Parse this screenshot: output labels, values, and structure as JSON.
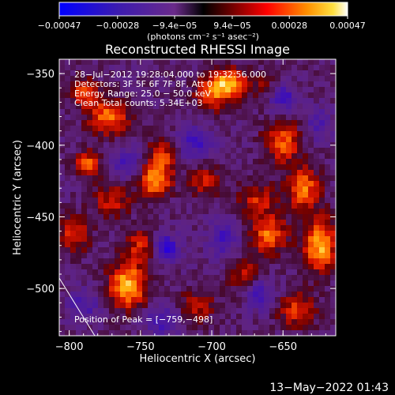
{
  "chart_data": {
    "type": "heatmap",
    "title": "Reconstructed RHESSI Image",
    "xlabel": "Heliocentric X (arcsec)",
    "ylabel": "Heliocentric Y (arcsec)",
    "xlim": [
      -807,
      -613
    ],
    "ylim": [
      -533,
      -340
    ],
    "x_ticks": [
      {
        "value": -800,
        "label": "−800"
      },
      {
        "value": -750,
        "label": "−750"
      },
      {
        "value": -700,
        "label": "−700"
      },
      {
        "value": -650,
        "label": "−650"
      }
    ],
    "y_ticks": [
      {
        "value": -350,
        "label": "−350"
      },
      {
        "value": -400,
        "label": "−400"
      },
      {
        "value": -450,
        "label": "−450"
      },
      {
        "value": -500,
        "label": "−500"
      }
    ],
    "colorbar": {
      "range": [
        -0.00047,
        0.00047
      ],
      "ticks": [
        {
          "value": -0.00047,
          "label": "−0.00047"
        },
        {
          "value": -0.00028,
          "label": "−0.00028"
        },
        {
          "value": -9.4e-05,
          "label": "−9.4e−05"
        },
        {
          "value": 9.4e-05,
          "label": "9.4e−05"
        },
        {
          "value": 0.00028,
          "label": "0.00028"
        },
        {
          "value": 0.00047,
          "label": "0.00047"
        }
      ],
      "units_label": "(photons cm⁻² s⁻¹ asec⁻²)"
    },
    "info_lines": [
      "28−Jul−2012 19:28:04.000 to 19:32:56.000",
      "Detectors: 3F 5F 6F 7F 8F, Att 0",
      "Energy Range: 25.0 − 50.0 keV",
      "Clean     Total counts: 5.34E+03"
    ],
    "peak_label": "Position of Peak = [−759,−498]",
    "peak_position": [
      -759,
      -498
    ],
    "blobs": [
      {
        "x": -759,
        "y": -498,
        "amp": 1.0,
        "sx": 9,
        "sy": 11
      },
      {
        "x": -688,
        "y": -357,
        "amp": 0.9,
        "sx": 9,
        "sy": 7
      },
      {
        "x": -700,
        "y": -365,
        "amp": 0.6,
        "sx": 8,
        "sy": 8
      },
      {
        "x": -772,
        "y": -380,
        "amp": 0.75,
        "sx": 10,
        "sy": 9
      },
      {
        "x": -790,
        "y": -363,
        "amp": 0.6,
        "sx": 7,
        "sy": 7
      },
      {
        "x": -624,
        "y": -470,
        "amp": 0.95,
        "sx": 8,
        "sy": 13
      },
      {
        "x": -636,
        "y": -430,
        "amp": 0.8,
        "sx": 8,
        "sy": 10
      },
      {
        "x": -650,
        "y": -398,
        "amp": 0.7,
        "sx": 9,
        "sy": 10
      },
      {
        "x": -740,
        "y": -425,
        "amp": 0.85,
        "sx": 8,
        "sy": 8
      },
      {
        "x": -735,
        "y": -407,
        "amp": 0.6,
        "sx": 7,
        "sy": 9
      },
      {
        "x": -787,
        "y": -413,
        "amp": 0.75,
        "sx": 6,
        "sy": 6
      },
      {
        "x": -660,
        "y": -462,
        "amp": 0.75,
        "sx": 9,
        "sy": 9
      },
      {
        "x": -675,
        "y": -492,
        "amp": 0.55,
        "sx": 8,
        "sy": 10
      },
      {
        "x": -668,
        "y": -438,
        "amp": 0.5,
        "sx": 10,
        "sy": 8
      },
      {
        "x": -797,
        "y": -462,
        "amp": 0.55,
        "sx": 8,
        "sy": 9
      },
      {
        "x": -770,
        "y": -438,
        "amp": 0.5,
        "sx": 9,
        "sy": 8
      },
      {
        "x": -705,
        "y": -425,
        "amp": 0.45,
        "sx": 8,
        "sy": 8
      },
      {
        "x": -640,
        "y": -515,
        "amp": 0.6,
        "sx": 9,
        "sy": 8
      },
      {
        "x": -710,
        "y": -512,
        "amp": 0.45,
        "sx": 8,
        "sy": 8
      },
      {
        "x": -750,
        "y": -470,
        "amp": 0.5,
        "sx": 8,
        "sy": 8
      },
      {
        "x": -660,
        "y": -360,
        "amp": 0.35,
        "sx": 9,
        "sy": 8
      },
      {
        "x": -651,
        "y": -366,
        "amp": -0.7,
        "sx": 7,
        "sy": 7
      },
      {
        "x": -732,
        "y": -472,
        "amp": -0.75,
        "sx": 6,
        "sy": 7
      },
      {
        "x": -668,
        "y": -503,
        "amp": -0.7,
        "sx": 7,
        "sy": 8
      },
      {
        "x": -712,
        "y": -398,
        "amp": -0.55,
        "sx": 9,
        "sy": 8
      },
      {
        "x": -760,
        "y": -412,
        "amp": -0.45,
        "sx": 8,
        "sy": 8
      },
      {
        "x": -735,
        "y": -523,
        "amp": -0.5,
        "sx": 9,
        "sy": 7
      },
      {
        "x": -692,
        "y": -465,
        "amp": -0.5,
        "sx": 8,
        "sy": 9
      },
      {
        "x": -790,
        "y": -512,
        "amp": -0.45,
        "sx": 8,
        "sy": 8
      },
      {
        "x": -625,
        "y": -385,
        "amp": -0.4,
        "sx": 7,
        "sy": 8
      }
    ],
    "colors": {
      "background": "#000000",
      "low": "#0000ff",
      "neutral_negative": "#6a2a8a",
      "mid": "#ff0000",
      "high": "#ffa500",
      "max": "#ffffff"
    }
  },
  "timestamp": "13−May−2022 01:43"
}
